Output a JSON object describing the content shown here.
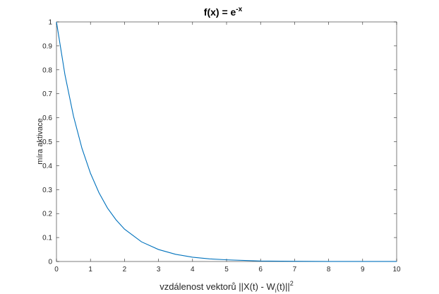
{
  "chart_data": {
    "type": "line",
    "title": {
      "base": "f(x) = e",
      "superscript": "-x"
    },
    "xlabel": {
      "main": "vzdálenost vektorů ||X(t) - W",
      "subscript": "i",
      "after": "(t)||",
      "superscript": "2"
    },
    "ylabel": "míra aktivace",
    "xlim": [
      0,
      10
    ],
    "ylim": [
      0,
      1
    ],
    "x_ticks": [
      "0",
      "1",
      "2",
      "3",
      "4",
      "5",
      "6",
      "7",
      "8",
      "9",
      "10"
    ],
    "y_ticks": [
      "0",
      "0.1",
      "0.2",
      "0.3",
      "0.4",
      "0.5",
      "0.6",
      "0.7",
      "0.8",
      "0.9",
      "1"
    ],
    "grid": false,
    "line_color": "#0072BD",
    "series": [
      {
        "x": [
          0,
          0.25,
          0.5,
          0.75,
          1,
          1.25,
          1.5,
          1.75,
          2,
          2.5,
          3,
          3.5,
          4,
          4.5,
          5,
          6,
          7,
          8,
          9,
          10
        ],
        "values": [
          1,
          0.779,
          0.607,
          0.472,
          0.368,
          0.287,
          0.223,
          0.174,
          0.135,
          0.082,
          0.05,
          0.03,
          0.018,
          0.011,
          0.007,
          0.002,
          0.001,
          0.0003,
          0.0001,
          5e-05
        ]
      }
    ]
  }
}
